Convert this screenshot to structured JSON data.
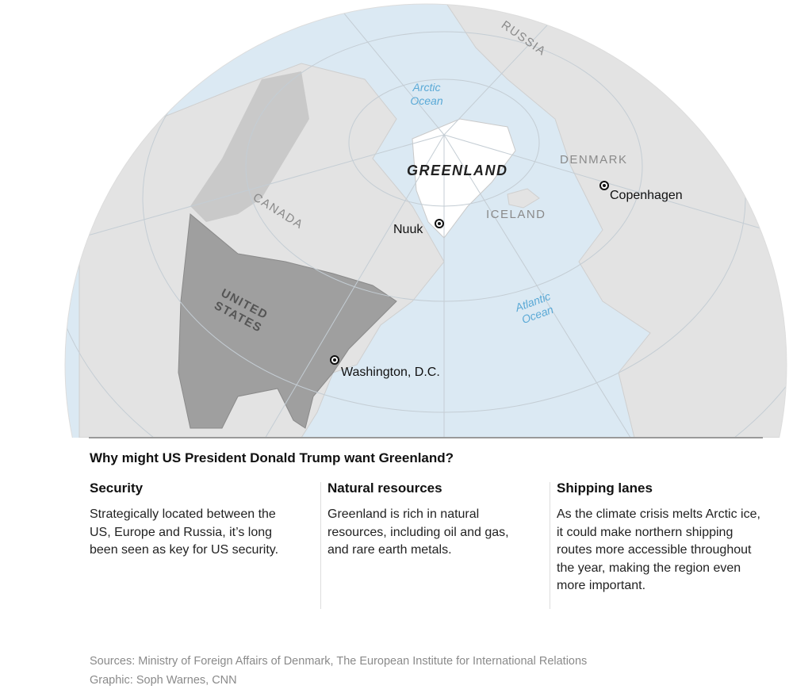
{
  "map": {
    "labels": {
      "russia": "RUSSIA",
      "arctic_ocean": "Arctic Ocean",
      "greenland": "GREENLAND",
      "denmark": "DENMARK",
      "canada": "CANADA",
      "iceland": "ICELAND",
      "united_states": "UNITED STATES",
      "atlantic_ocean": "Atlantic Ocean"
    },
    "cities": {
      "nuuk": "Nuuk",
      "copenhagen": "Copenhagen",
      "washington": "Washington, D.C."
    },
    "colors": {
      "ocean": "#dbe9f3",
      "land": "#e3e3e3",
      "us": "#9b9b9b",
      "greenland": "#ffffff"
    }
  },
  "question": "Why might US President Donald Trump want Greenland?",
  "columns": [
    {
      "title": "Security",
      "text": "Strategically located between the US, Europe and Russia, it’s long been seen as key for US security."
    },
    {
      "title": "Natural resources",
      "text": "Greenland is rich in natural resources, including oil and gas, and rare earth metals."
    },
    {
      "title": "Shipping lanes",
      "text": "As the climate crisis melts Arctic ice, it could make northern shipping routes more accessible throughout the year, making the region even more important."
    }
  ],
  "footer": {
    "sources": "Sources: Ministry of Foreign Affairs of Denmark, The European Institute for International Relations",
    "credit": "Graphic: Soph Warnes, CNN"
  }
}
